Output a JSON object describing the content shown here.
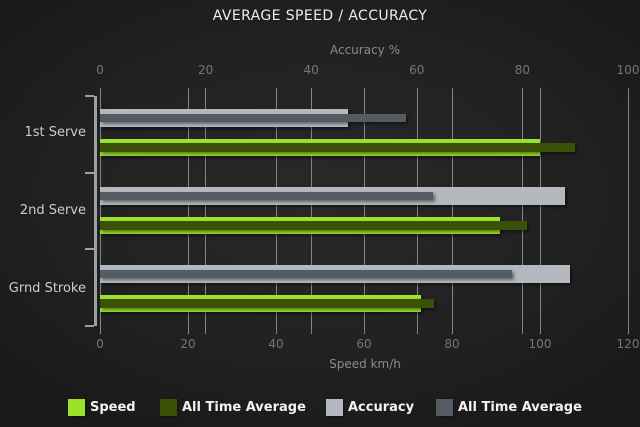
{
  "title": "AVERAGE SPEED / ACCURACY",
  "colors": {
    "speed": "#9be32b",
    "speed_all_time_average": "#3c5107",
    "accuracy": "#b3b9be",
    "accuracy_all_time_average": "#555b62",
    "background": "#222222",
    "gridline": "#969696",
    "axis_line": "#9aa0a4",
    "tick_text": "#757575",
    "title_text": "#eeeeee",
    "legend_text": "#f2f2f2"
  },
  "chart_data": {
    "type": "bar",
    "orientation": "horizontal",
    "title": "AVERAGE SPEED / ACCURACY",
    "categories": [
      "1st Serve",
      "2nd Serve",
      "Grnd Stroke"
    ],
    "series": [
      {
        "name": "Speed",
        "axis": "bottom",
        "unit": "km/h",
        "color": "#9be32b",
        "values": [
          100,
          91,
          73
        ]
      },
      {
        "name": "All Time Average",
        "axis": "bottom",
        "unit": "km/h",
        "color": "#3c5107",
        "values": [
          108,
          97,
          76
        ]
      },
      {
        "name": "Accuracy",
        "axis": "top",
        "unit": "%",
        "color": "#b3b9be",
        "values": [
          47,
          88,
          89
        ]
      },
      {
        "name": "All Time Average",
        "axis": "top",
        "unit": "%",
        "color": "#555b62",
        "values": [
          58,
          63,
          78
        ]
      }
    ],
    "axes": {
      "top": {
        "label": "Accuracy %",
        "range": [
          0,
          100
        ],
        "ticks": [
          "0",
          "20",
          "40",
          "60",
          "80",
          "100"
        ]
      },
      "bottom": {
        "label": "Speed km/h",
        "range": [
          0,
          120
        ],
        "ticks": [
          "0",
          "20",
          "40",
          "60",
          "80",
          "100",
          "120"
        ]
      }
    },
    "grid": true,
    "legend_position": "bottom",
    "legend": [
      {
        "label": "Speed",
        "color": "#9be32b"
      },
      {
        "label": "All Time Average",
        "color": "#3c5107"
      },
      {
        "label": "Accuracy",
        "color": "#b3b9be"
      },
      {
        "label": "All Time Average",
        "color": "#555b62"
      }
    ]
  }
}
